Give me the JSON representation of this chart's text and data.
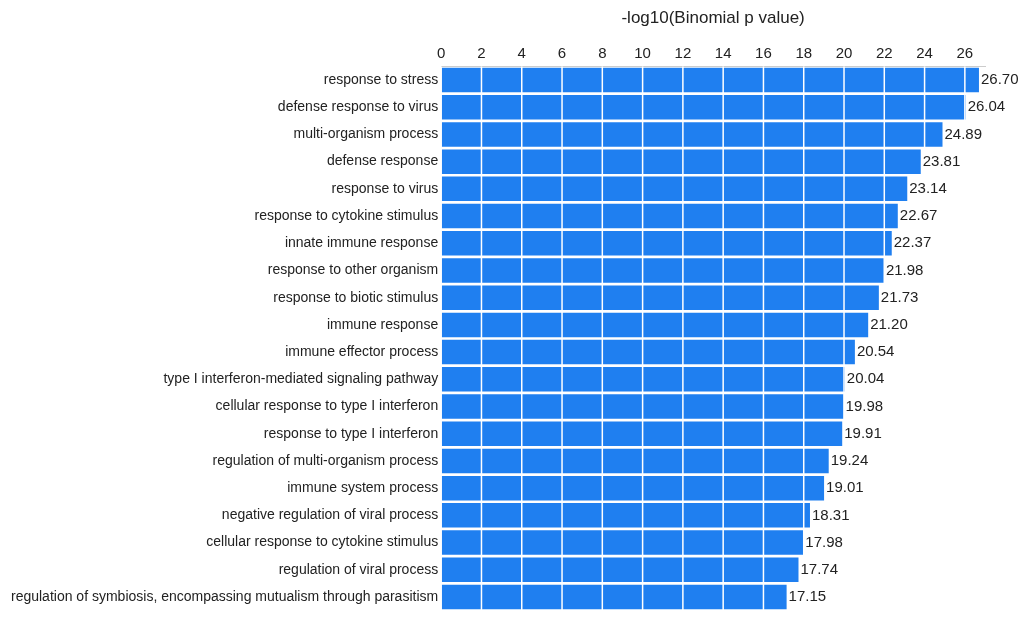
{
  "chart_data": {
    "type": "bar",
    "orientation": "horizontal",
    "xlabel": "-log10(Binomial p value)",
    "categories": [
      "response to stress",
      "defense response to virus",
      "multi-organism process",
      "defense response",
      "response to virus",
      "response to cytokine stimulus",
      "innate immune response",
      "response to other organism",
      "response to biotic stimulus",
      "immune response",
      "immune effector process",
      "type I interferon-mediated signaling pathway",
      "cellular response to type I interferon",
      "response to type I interferon",
      "regulation of multi-organism process",
      "immune system process",
      "negative regulation of viral process",
      "cellular response to cytokine stimulus",
      "regulation of viral process",
      "regulation of symbiosis, encompassing mutualism through parasitism"
    ],
    "values": [
      26.7,
      26.04,
      24.89,
      23.81,
      23.14,
      22.67,
      22.37,
      21.98,
      21.73,
      21.2,
      20.54,
      20.04,
      19.98,
      19.91,
      19.24,
      19.01,
      18.31,
      17.98,
      17.74,
      17.15
    ],
    "value_labels": [
      "26.70",
      "26.04",
      "24.89",
      "23.81",
      "23.14",
      "22.67",
      "22.37",
      "21.98",
      "21.73",
      "21.20",
      "20.54",
      "20.04",
      "19.98",
      "19.91",
      "19.24",
      "19.01",
      "18.31",
      "17.98",
      "17.74",
      "17.15"
    ],
    "color": "#1f7ff0",
    "xlim": [
      0,
      27
    ],
    "xticks": [
      0,
      2,
      4,
      6,
      8,
      10,
      12,
      14,
      16,
      18,
      20,
      22,
      24,
      26
    ],
    "grid": "x",
    "legend": false
  }
}
